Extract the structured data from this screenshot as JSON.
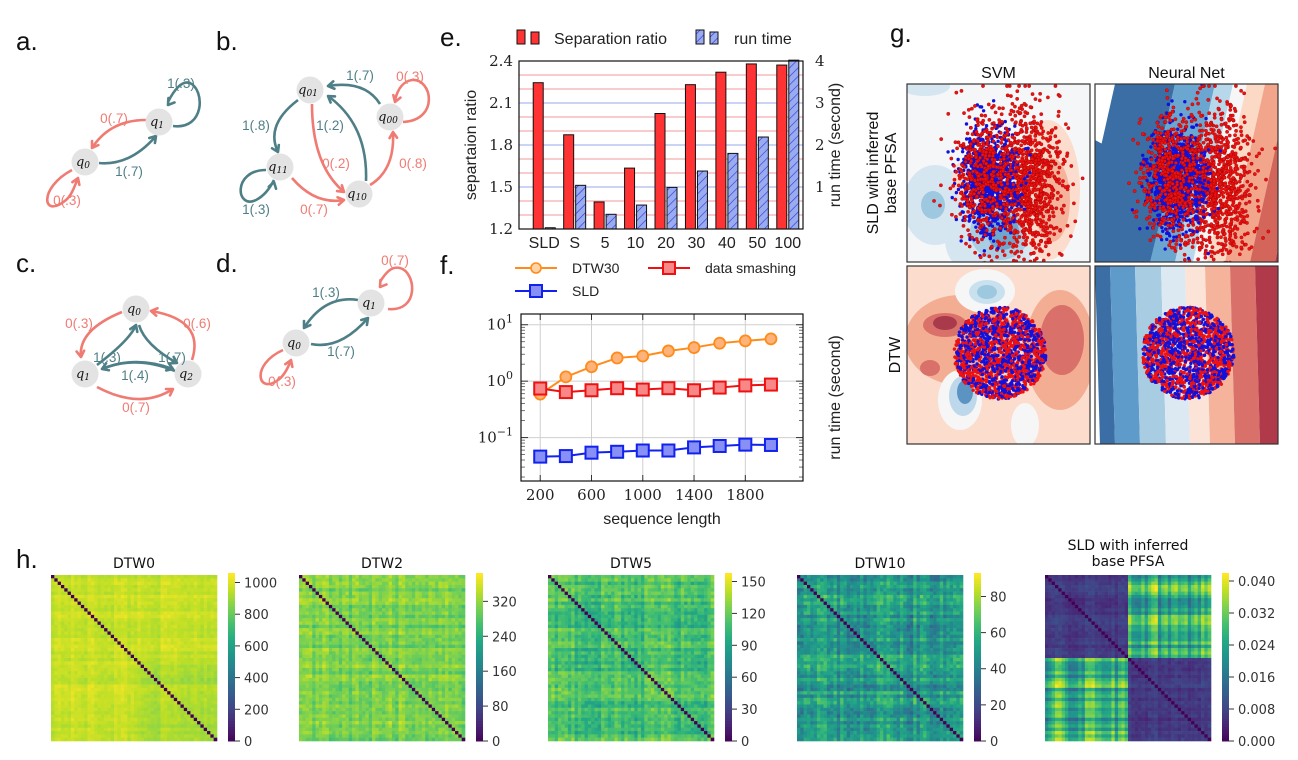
{
  "colors": {
    "zero_edge": "#ef7b73",
    "one_edge": "#4e7f86",
    "node_fill": "#e3e3e3",
    "sep_bar": "#ff3333",
    "run_bar": "#9aabf0",
    "run_hatch": "#2233dd",
    "dtw30": "#ff8c1a",
    "smashing": "#ee1111",
    "sld": "#1122ee",
    "class_red": "#ee1111",
    "class_blue": "#1111dd"
  },
  "panel_labels": {
    "a": "a.",
    "b": "b.",
    "c": "c.",
    "d": "d.",
    "e": "e.",
    "f": "f.",
    "g": "g.",
    "h": "h."
  },
  "diagrams": {
    "a": {
      "nodes": [
        {
          "id": "q0",
          "base": "q",
          "sub": "0"
        },
        {
          "id": "q1",
          "base": "q",
          "sub": "1"
        }
      ],
      "edges": [
        {
          "from": "q0",
          "to": "q0",
          "label": "0(.3)",
          "symbol": "0"
        },
        {
          "from": "q0",
          "to": "q1",
          "label": "1(.7)",
          "symbol": "1"
        },
        {
          "from": "q1",
          "to": "q0",
          "label": "0(.7)",
          "symbol": "0"
        },
        {
          "from": "q1",
          "to": "q1",
          "label": "1(.3)",
          "symbol": "1"
        }
      ]
    },
    "b": {
      "nodes": [
        {
          "id": "q01",
          "base": "q",
          "sub": "01"
        },
        {
          "id": "q00",
          "base": "q",
          "sub": "00"
        },
        {
          "id": "q11",
          "base": "q",
          "sub": "11"
        },
        {
          "id": "q10",
          "base": "q",
          "sub": "10"
        }
      ],
      "edges": [
        {
          "from": "q00",
          "to": "q01",
          "label": "1(.7)",
          "symbol": "1"
        },
        {
          "from": "q00",
          "to": "q00",
          "label": "0(.3)",
          "symbol": "0"
        },
        {
          "from": "q01",
          "to": "q11",
          "label": "1(.8)",
          "symbol": "1"
        },
        {
          "from": "q10",
          "to": "q01",
          "label": "1(.2)",
          "symbol": "1"
        },
        {
          "from": "q01",
          "to": "q10",
          "label": "0(.2)",
          "symbol": "0"
        },
        {
          "from": "q10",
          "to": "q00",
          "label": "0(.8)",
          "symbol": "0"
        },
        {
          "from": "q11",
          "to": "q11",
          "label": "1(.3)",
          "symbol": "1"
        },
        {
          "from": "q11",
          "to": "q10",
          "label": "0(.7)",
          "symbol": "0"
        }
      ]
    },
    "c": {
      "nodes": [
        {
          "id": "q0",
          "base": "q",
          "sub": "0"
        },
        {
          "id": "q1",
          "base": "q",
          "sub": "1"
        },
        {
          "id": "q2",
          "base": "q",
          "sub": "2"
        }
      ],
      "edges": [
        {
          "from": "q0",
          "to": "q1",
          "label": "0(.3)",
          "symbol": "0"
        },
        {
          "from": "q2",
          "to": "q0",
          "label": "0(.6)",
          "symbol": "0"
        },
        {
          "from": "q1",
          "to": "q0",
          "label": "1(.3)",
          "symbol": "1"
        },
        {
          "from": "q0",
          "to": "q2",
          "label": "1(.7)",
          "symbol": "1"
        },
        {
          "from": "q1",
          "to": "q2",
          "label": "1(.4)",
          "symbol": "1"
        },
        {
          "from": "q1",
          "to": "q2",
          "label": "0(.7)",
          "symbol": "0"
        }
      ]
    },
    "d": {
      "nodes": [
        {
          "id": "q0",
          "base": "q",
          "sub": "0"
        },
        {
          "id": "q1",
          "base": "q",
          "sub": "1"
        }
      ],
      "edges": [
        {
          "from": "q0",
          "to": "q0",
          "label": "0(.3)",
          "symbol": "0"
        },
        {
          "from": "q0",
          "to": "q1",
          "label": "1(.7)",
          "symbol": "1"
        },
        {
          "from": "q1",
          "to": "q0",
          "label": "1(.3)",
          "symbol": "1"
        },
        {
          "from": "q1",
          "to": "q1",
          "label": "0(.7)",
          "symbol": "0"
        }
      ]
    }
  },
  "chart_data": [
    {
      "id": "e",
      "type": "bar",
      "title": "",
      "categories": [
        "SLD",
        "S",
        "5",
        "10",
        "20",
        "30",
        "40",
        "50",
        "100"
      ],
      "series": [
        {
          "name": "Separation ratio",
          "axis": "left",
          "values": [
            2.245,
            1.873,
            1.393,
            1.635,
            2.025,
            2.231,
            2.32,
            2.379,
            2.371
          ]
        },
        {
          "name": "run time",
          "axis": "right",
          "values": [
            0.03,
            1.04,
            0.35,
            0.57,
            0.99,
            1.38,
            1.8,
            2.19,
            4.02
          ]
        }
      ],
      "legend": [
        "Separation ratio",
        "run time"
      ],
      "legend_placement": "top",
      "ylabel": "separtaion ratio",
      "ylabel_right": "run time (second)",
      "ylim": [
        1.2,
        2.4
      ],
      "ylim_right": [
        0,
        4
      ],
      "yticks": [
        "1.2",
        "1.5",
        "1.8",
        "2.1",
        "2.4"
      ],
      "yticks_right": [
        "1",
        "2",
        "3",
        "4"
      ],
      "grid": true
    },
    {
      "id": "f",
      "type": "line",
      "x": [
        200,
        400,
        600,
        800,
        1000,
        1200,
        1400,
        1600,
        1800,
        2000
      ],
      "series": [
        {
          "name": "DTW30",
          "marker": "circle",
          "values": [
            0.59,
            1.19,
            1.8,
            2.58,
            2.79,
            3.43,
            3.94,
            4.71,
            5.18,
            5.62
          ]
        },
        {
          "name": "data smashing",
          "marker": "square",
          "values": [
            0.74,
            0.64,
            0.69,
            0.75,
            0.71,
            0.75,
            0.69,
            0.77,
            0.84,
            0.87
          ]
        },
        {
          "name": "SLD",
          "marker": "square",
          "values": [
            0.046,
            0.047,
            0.054,
            0.056,
            0.059,
            0.059,
            0.067,
            0.071,
            0.075,
            0.074
          ]
        }
      ],
      "legend": [
        "DTW30",
        "data smashing",
        "SLD"
      ],
      "legend_placement": "top",
      "xlabel": "sequence length",
      "ylabel": "run time (second)",
      "yscale": "log",
      "xticks": [
        "200",
        "600",
        "1000",
        "1400",
        "1800"
      ],
      "yticks": [
        "10^-1",
        "10^0",
        "10^1"
      ],
      "xlim": [
        50,
        2250
      ],
      "ylim": [
        0.017,
        15.5
      ],
      "grid": true
    },
    {
      "id": "g",
      "type": "scatter",
      "column_titles": [
        "SVM",
        "Neural Net"
      ],
      "row_labels": [
        "SLD with inferred base PFSA",
        "DTW"
      ],
      "classes": [
        "red",
        "blue"
      ],
      "description": "decision-boundary contour panels with two-class scatter"
    },
    {
      "id": "h",
      "type": "heatmap",
      "panels": [
        {
          "title": "DTW0",
          "colorbar_ticks": [
            "0",
            "200",
            "400",
            "600",
            "800",
            "1000"
          ],
          "vmin": 0,
          "vmax": 1060
        },
        {
          "title": "DTW2",
          "colorbar_ticks": [
            "0",
            "80",
            "160",
            "240",
            "320"
          ],
          "vmin": 0,
          "vmax": 385
        },
        {
          "title": "DTW5",
          "colorbar_ticks": [
            "0",
            "30",
            "60",
            "90",
            "120",
            "150"
          ],
          "vmin": 0,
          "vmax": 158
        },
        {
          "title": "DTW10",
          "colorbar_ticks": [
            "0",
            "20",
            "40",
            "60",
            "80"
          ],
          "vmin": 0,
          "vmax": 93
        },
        {
          "title": "SLD with inferred base PFSA",
          "colorbar_ticks": [
            "0.000",
            "0.008",
            "0.016",
            "0.024",
            "0.032",
            "0.040"
          ],
          "vmin": 0,
          "vmax": 0.042
        }
      ],
      "colormap": "viridis"
    }
  ]
}
